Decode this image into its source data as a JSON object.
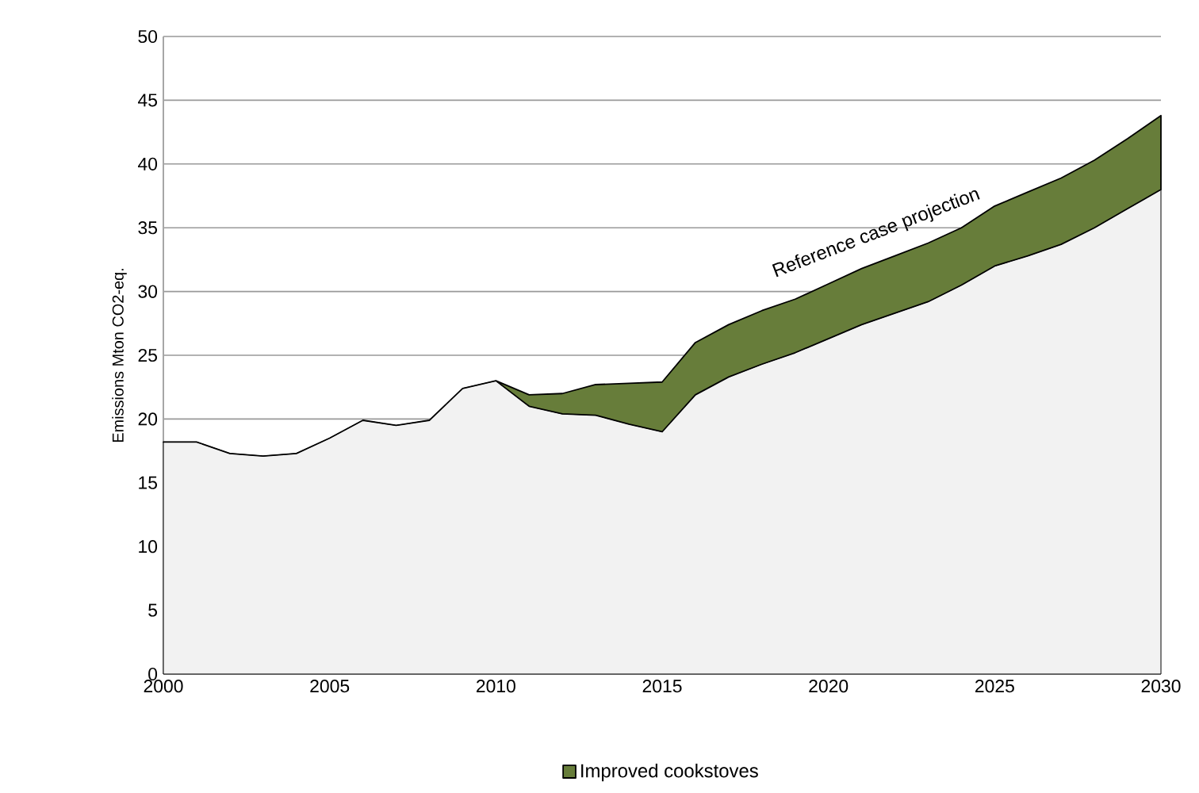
{
  "chart_data": {
    "type": "area",
    "ylabel": "Emissions  Mton CO2-eq.",
    "x": [
      2000,
      2001,
      2002,
      2003,
      2004,
      2005,
      2006,
      2007,
      2008,
      2009,
      2010,
      2011,
      2012,
      2013,
      2014,
      2015,
      2016,
      2017,
      2018,
      2019,
      2020,
      2021,
      2022,
      2023,
      2024,
      2025,
      2026,
      2027,
      2028,
      2029,
      2030
    ],
    "series": [
      {
        "color": "#f2f2f2",
        "values": [
          18.2,
          18.2,
          17.3,
          17.1,
          17.3,
          18.5,
          19.9,
          19.5,
          19.9,
          22.4,
          23.0,
          21.0,
          20.4,
          20.3,
          19.6,
          19.0,
          21.9,
          23.3,
          24.3,
          25.2,
          26.3,
          27.4,
          28.3,
          29.2,
          30.5,
          32.0,
          32.8,
          33.7,
          35.0,
          36.5,
          38.0
        ]
      },
      {
        "name": "Improved cookstoves",
        "color": "#677d3a",
        "values": [
          0,
          0,
          0,
          0,
          0,
          0,
          0,
          0,
          0,
          0,
          0,
          0.9,
          1.6,
          2.4,
          3.2,
          3.9,
          4.1,
          4.1,
          4.2,
          4.2,
          4.3,
          4.4,
          4.5,
          4.6,
          4.5,
          4.7,
          5.0,
          5.2,
          5.3,
          5.5,
          5.8
        ]
      }
    ],
    "annotations": [
      "Reference case projection"
    ],
    "stacked": true,
    "xlim": [
      2000,
      2030
    ],
    "ylim": [
      0,
      50
    ],
    "xticks": [
      2000,
      2005,
      2010,
      2015,
      2020,
      2025,
      2030
    ],
    "yticks": [
      0,
      5,
      10,
      15,
      20,
      25,
      30,
      35,
      40,
      45,
      50
    ],
    "grid": "y",
    "legend": "bottom"
  }
}
